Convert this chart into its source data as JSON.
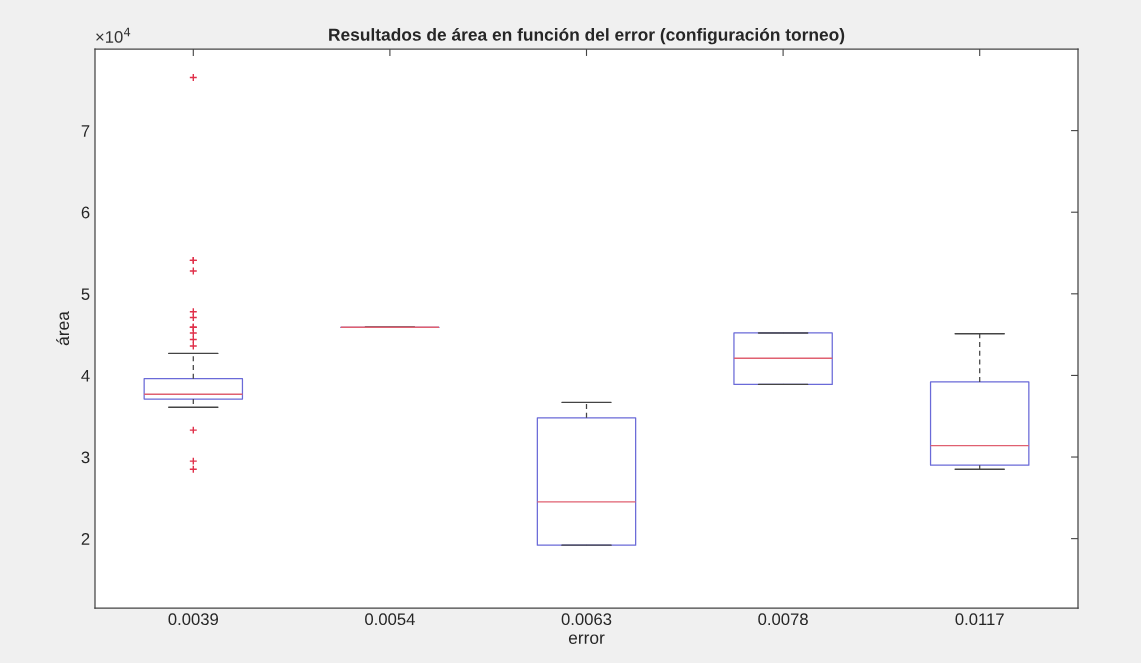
{
  "chart_data": {
    "type": "box",
    "title": "Resultados de área en función del error (configuración torneo)",
    "xlabel": "error",
    "ylabel": "área",
    "categories": [
      "0.0039",
      "0.0054",
      "0.0063",
      "0.0078",
      "0.0117"
    ],
    "boxes": [
      {
        "low": 3.61,
        "q1": 3.71,
        "median": 3.77,
        "q3": 3.96,
        "high": 4.27,
        "outliers": [
          7.65,
          5.41,
          5.41,
          5.28,
          4.78,
          4.71,
          4.59,
          4.59,
          4.52,
          4.44,
          4.36,
          3.33,
          2.95,
          2.85
        ]
      },
      {
        "low": 4.59,
        "q1": 4.59,
        "median": 4.59,
        "q3": 4.59,
        "high": 4.59
      },
      {
        "low": 1.92,
        "q1": 1.92,
        "median": 2.45,
        "q3": 3.48,
        "high": 3.67
      },
      {
        "low": 3.89,
        "q1": 3.89,
        "median": 4.21,
        "q3": 4.52,
        "high": 4.52
      },
      {
        "low": 2.85,
        "q1": 2.9,
        "median": 3.14,
        "q3": 3.92,
        "high": 4.51
      }
    ],
    "ylim": [
      1.15,
      8
    ],
    "yticks": [
      2,
      3,
      4,
      5,
      6,
      7
    ],
    "marker": "cross",
    "grid": false,
    "annotations": [
      "×10$^{4}$"
    ]
  }
}
